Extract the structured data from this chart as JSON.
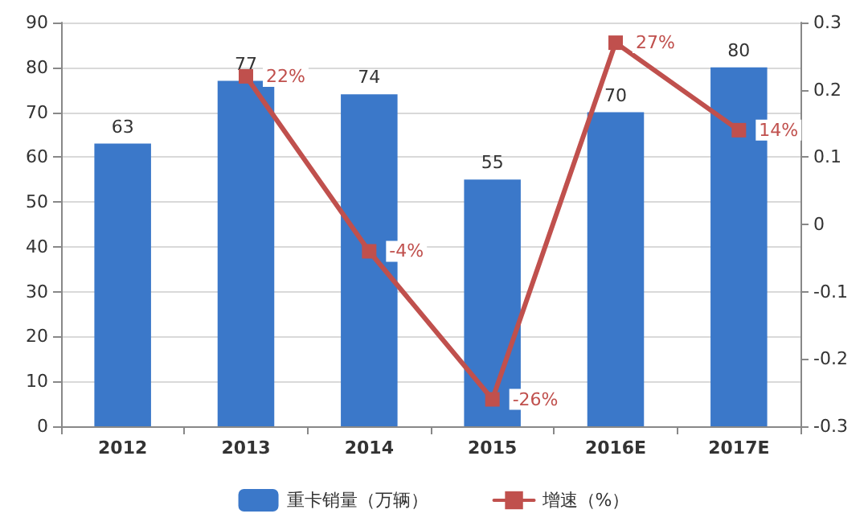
{
  "chart_data": {
    "type": "bar",
    "categories": [
      "2012",
      "2013",
      "2014",
      "2015",
      "2016E",
      "2017E"
    ],
    "series": [
      {
        "name": "重卡销量（万辆）",
        "color": "#3b78c9",
        "values": [
          63,
          77,
          74,
          55,
          70,
          80
        ],
        "value_labels": [
          "63",
          "77",
          "74",
          "55",
          "70",
          "80"
        ]
      },
      {
        "name": "增速（%）",
        "type": "line",
        "axis": "y2",
        "color": "#c0504d",
        "values": [
          null,
          0.22,
          -0.04,
          -0.26,
          0.27,
          0.14
        ],
        "value_labels": [
          null,
          "22%",
          "-4%",
          "-26%",
          "27%",
          "14%"
        ]
      }
    ],
    "ylim": [
      0,
      90
    ],
    "yticks": [
      0,
      10,
      20,
      30,
      40,
      50,
      60,
      70,
      80,
      90
    ],
    "y2lim": [
      -0.3,
      0.3
    ],
    "y2ticks": [
      -0.3,
      -0.2,
      -0.1,
      0,
      0.1,
      0.2,
      0.3
    ],
    "grid": "y",
    "legend": "bottom",
    "marker": "square",
    "line_style": "solid"
  }
}
